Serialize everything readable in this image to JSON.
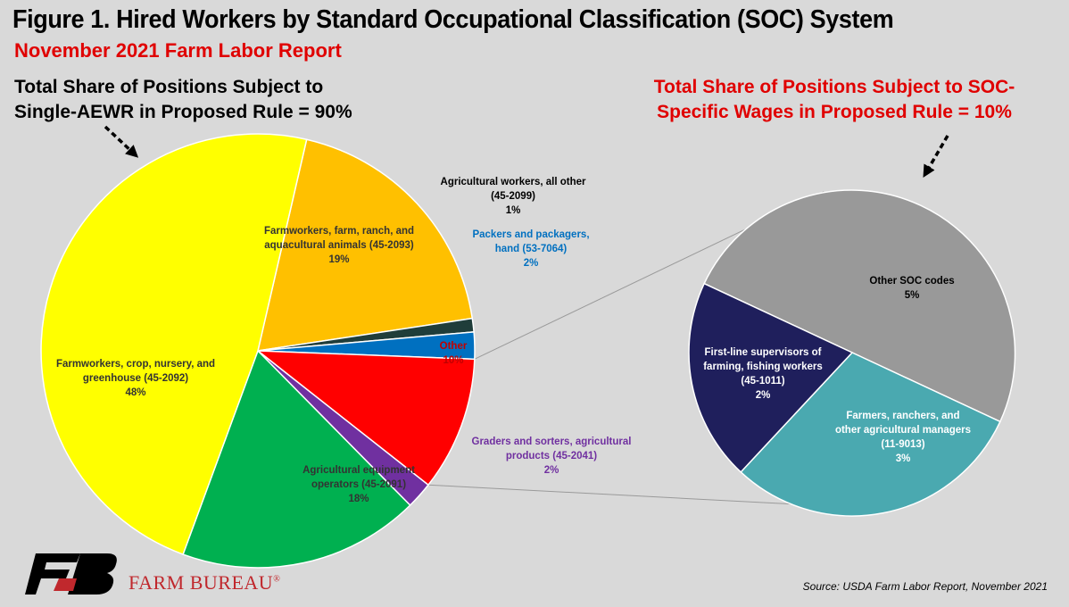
{
  "title": "Figure 1. Hired Workers by Standard Occupational Classification (SOC) System",
  "subtitle": "November 2021 Farm Labor Report",
  "note_left": "Total Share of Positions Subject to Single-AEWR in Proposed Rule = 90%",
  "note_right": "Total Share of Positions Subject to SOC-Specific Wages in Proposed Rule = 10%",
  "source": "Source: USDA Farm Labor Report, November 2021",
  "logo_text": "FARM BUREAU",
  "logo_registered": "®",
  "logo_mark_letters": "FB",
  "colors": {
    "background": "#d9d9d9",
    "title": "#000000",
    "subtitle": "#e00000",
    "accent_red": "#c0282d"
  },
  "chart_data": [
    {
      "type": "pie",
      "slices": [
        {
          "label_lines": [
            "Farmworkers, farm, ranch, and",
            "aquacultural animals (45-2093)"
          ],
          "pct": "19%",
          "value": 19,
          "color": "#ffc000",
          "text_color": "#333333"
        },
        {
          "label_lines": [
            "Agricultural workers, all other",
            "(45-2099)"
          ],
          "pct": "1%",
          "value": 1,
          "color": "#1f3d3a",
          "text_color": "#000000"
        },
        {
          "label_lines": [
            "Packers and packagers,",
            "hand (53-7064)"
          ],
          "pct": "2%",
          "value": 2,
          "color": "#0070c0",
          "text_color": "#0070c0"
        },
        {
          "label_lines": [
            "Other"
          ],
          "pct": "10%",
          "value": 10,
          "color": "#ff0000",
          "text_color": "#c00000"
        },
        {
          "label_lines": [
            "Graders and sorters, agricultural",
            "products (45-2041)"
          ],
          "pct": "2%",
          "value": 2,
          "color": "#7030a0",
          "text_color": "#7030a0"
        },
        {
          "label_lines": [
            "Agricultural equipment",
            "operators (45-2091)"
          ],
          "pct": "18%",
          "value": 18,
          "color": "#00b050",
          "text_color": "#333333"
        },
        {
          "label_lines": [
            "Farmworkers, crop, nursery, and",
            "greenhouse (45-2092)"
          ],
          "pct": "48%",
          "value": 48,
          "color": "#ffff00",
          "text_color": "#333333"
        }
      ]
    },
    {
      "type": "pie",
      "slices": [
        {
          "label_lines": [
            "Other SOC codes"
          ],
          "pct": "5%",
          "value": 5,
          "color": "#999999",
          "text_color": "#000000"
        },
        {
          "label_lines": [
            "Farmers, ranchers, and",
            "other agricultural managers",
            "(11-9013)"
          ],
          "pct": "3%",
          "value": 3,
          "color": "#4aa9b0",
          "text_color": "#ffffff"
        },
        {
          "label_lines": [
            "First-line supervisors of",
            "farming, fishing workers",
            "(45-1011)"
          ],
          "pct": "2%",
          "value": 2,
          "color": "#1f1f5c",
          "text_color": "#ffffff"
        }
      ]
    }
  ]
}
